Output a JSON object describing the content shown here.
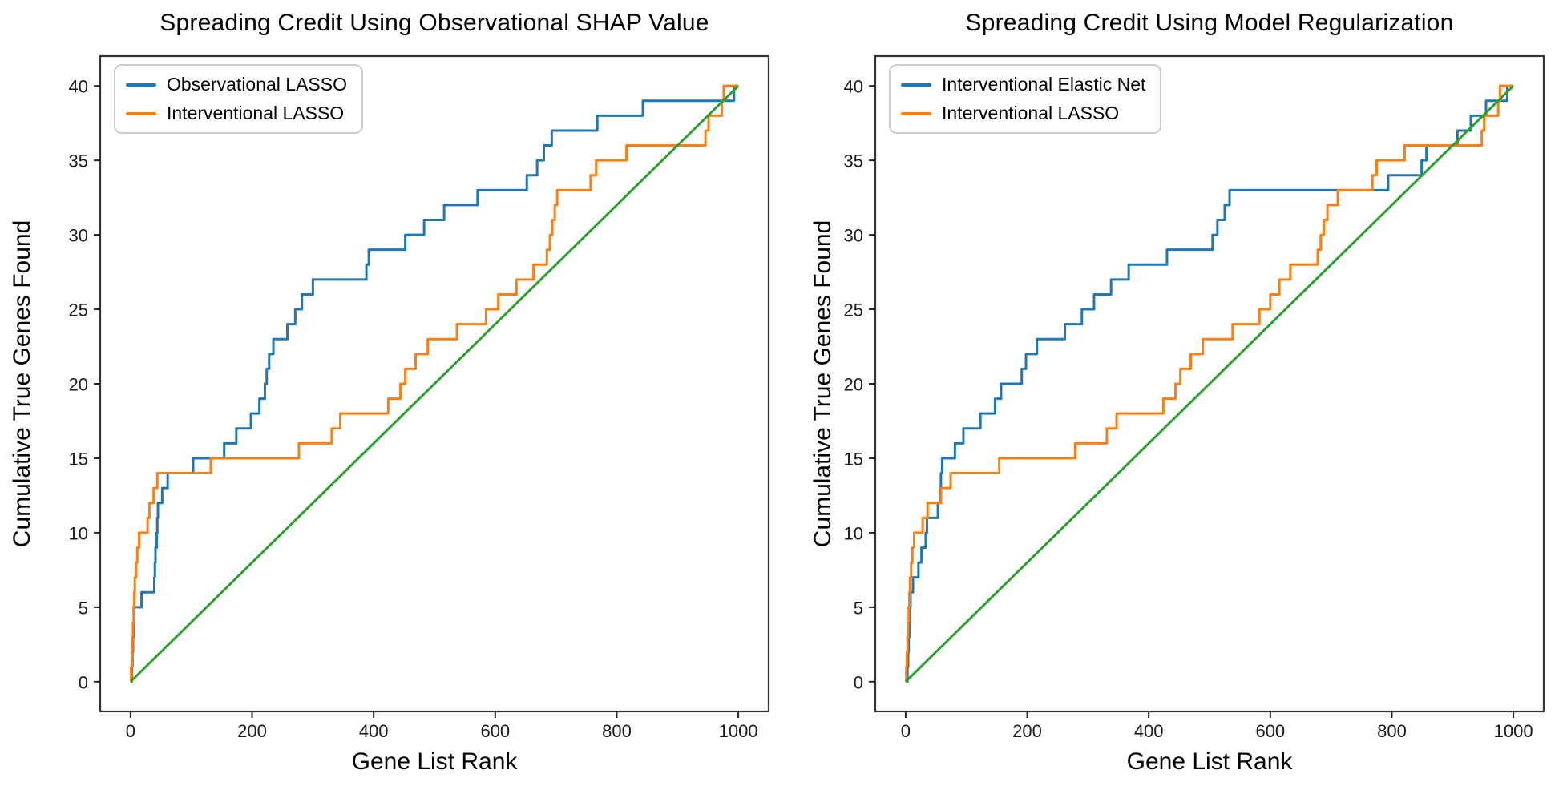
{
  "figure": {
    "background": "#ffffff",
    "frame_color": "#333333",
    "tick_color": "#262626"
  },
  "chart_data": [
    {
      "type": "line",
      "subtype": "cumulative-step",
      "title": "Spreading Credit Using Observational SHAP Value",
      "xlabel": "Gene List Rank",
      "ylabel": "Cumulative True Genes Found",
      "xlim": [
        -50,
        1050
      ],
      "ylim": [
        -2,
        42
      ],
      "x_ticks": [
        0,
        200,
        400,
        600,
        800,
        1000
      ],
      "y_ticks": [
        0,
        5,
        10,
        15,
        20,
        25,
        30,
        35,
        40
      ],
      "grid": false,
      "legend_position": "upper-left",
      "total_genes": 40,
      "max_rank": 1000,
      "series": [
        {
          "name": "Observational LASSO",
          "color": "#1f77b4",
          "kind": "step",
          "hit_ranks": [
            2,
            3,
            4,
            5,
            6,
            18,
            39,
            40,
            41,
            43,
            44,
            45,
            52,
            61,
            103,
            154,
            174,
            198,
            212,
            221,
            224,
            228,
            235,
            258,
            271,
            282,
            300,
            388,
            392,
            452,
            483,
            516,
            571,
            652,
            669,
            680,
            693,
            768,
            843,
            993
          ]
        },
        {
          "name": "Interventional LASSO",
          "color": "#ff7f0e",
          "kind": "step",
          "hit_ranks": [
            1,
            2,
            3,
            4,
            5,
            6,
            7,
            9,
            11,
            14,
            28,
            31,
            38,
            44,
            132,
            277,
            331,
            345,
            424,
            444,
            452,
            469,
            489,
            537,
            585,
            605,
            635,
            663,
            685,
            690,
            694,
            698,
            702,
            757,
            766,
            816,
            946,
            951,
            973,
            976
          ]
        },
        {
          "name": "random-baseline",
          "color": "#2ca02c",
          "kind": "line",
          "x": [
            0,
            1000
          ],
          "y": [
            0,
            40
          ],
          "in_legend": false
        }
      ]
    },
    {
      "type": "line",
      "subtype": "cumulative-step",
      "title": "Spreading Credit Using Model Regularization",
      "xlabel": "Gene List Rank",
      "ylabel": "Cumulative True Genes Found",
      "xlim": [
        -50,
        1050
      ],
      "ylim": [
        -2,
        42
      ],
      "x_ticks": [
        0,
        200,
        400,
        600,
        800,
        1000
      ],
      "y_ticks": [
        0,
        5,
        10,
        15,
        20,
        25,
        30,
        35,
        40
      ],
      "grid": false,
      "legend_position": "upper-left",
      "total_genes": 40,
      "max_rank": 1000,
      "series": [
        {
          "name": "Interventional Elastic Net",
          "color": "#1f77b4",
          "kind": "step",
          "hit_ranks": [
            3,
            4,
            5,
            6,
            7,
            8,
            12,
            21,
            26,
            33,
            35,
            53,
            57,
            58,
            60,
            81,
            95,
            123,
            147,
            157,
            191,
            198,
            216,
            262,
            290,
            310,
            338,
            367,
            430,
            505,
            513,
            525,
            533,
            794,
            849,
            857,
            908,
            930,
            955,
            990
          ]
        },
        {
          "name": "Interventional LASSO",
          "color": "#ff7f0e",
          "kind": "step",
          "hit_ranks": [
            1,
            2,
            3,
            4,
            5,
            6,
            7,
            9,
            11,
            14,
            28,
            36,
            58,
            74,
            154,
            279,
            331,
            347,
            424,
            444,
            452,
            469,
            489,
            538,
            582,
            600,
            615,
            633,
            678,
            683,
            688,
            694,
            711,
            768,
            775,
            821,
            948,
            952,
            975,
            978
          ]
        },
        {
          "name": "random-baseline",
          "color": "#2ca02c",
          "kind": "line",
          "x": [
            0,
            1000
          ],
          "y": [
            0,
            40
          ],
          "in_legend": false
        }
      ]
    }
  ]
}
